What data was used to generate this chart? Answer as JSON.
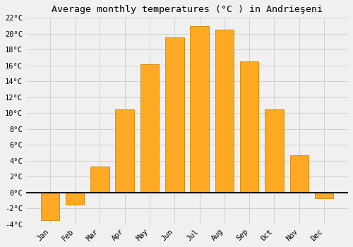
{
  "title": "Average monthly temperatures (°C ) in Andrieşeni",
  "months": [
    "Jan",
    "Feb",
    "Mar",
    "Apr",
    "May",
    "Jun",
    "Jul",
    "Aug",
    "Sep",
    "Oct",
    "Nov",
    "Dec"
  ],
  "values": [
    -3.5,
    -1.5,
    3.3,
    10.5,
    16.2,
    19.5,
    21.0,
    20.5,
    16.5,
    10.5,
    4.7,
    -0.7
  ],
  "bar_color": "#FFA824",
  "bar_edge_color": "#CC8800",
  "ylim": [
    -4,
    22
  ],
  "yticks": [
    -4,
    -2,
    0,
    2,
    4,
    6,
    8,
    10,
    12,
    14,
    16,
    18,
    20,
    22
  ],
  "ytick_labels": [
    "-4°C",
    "-2°C",
    "0°C",
    "2°C",
    "4°C",
    "6°C",
    "8°C",
    "10°C",
    "12°C",
    "14°C",
    "16°C",
    "18°C",
    "20°C",
    "22°C"
  ],
  "background_color": "#f0f0f0",
  "grid_color": "#d0d0d0",
  "title_fontsize": 9.5,
  "tick_fontsize": 7.5,
  "font_family": "monospace",
  "xlabel_rotation": 45
}
